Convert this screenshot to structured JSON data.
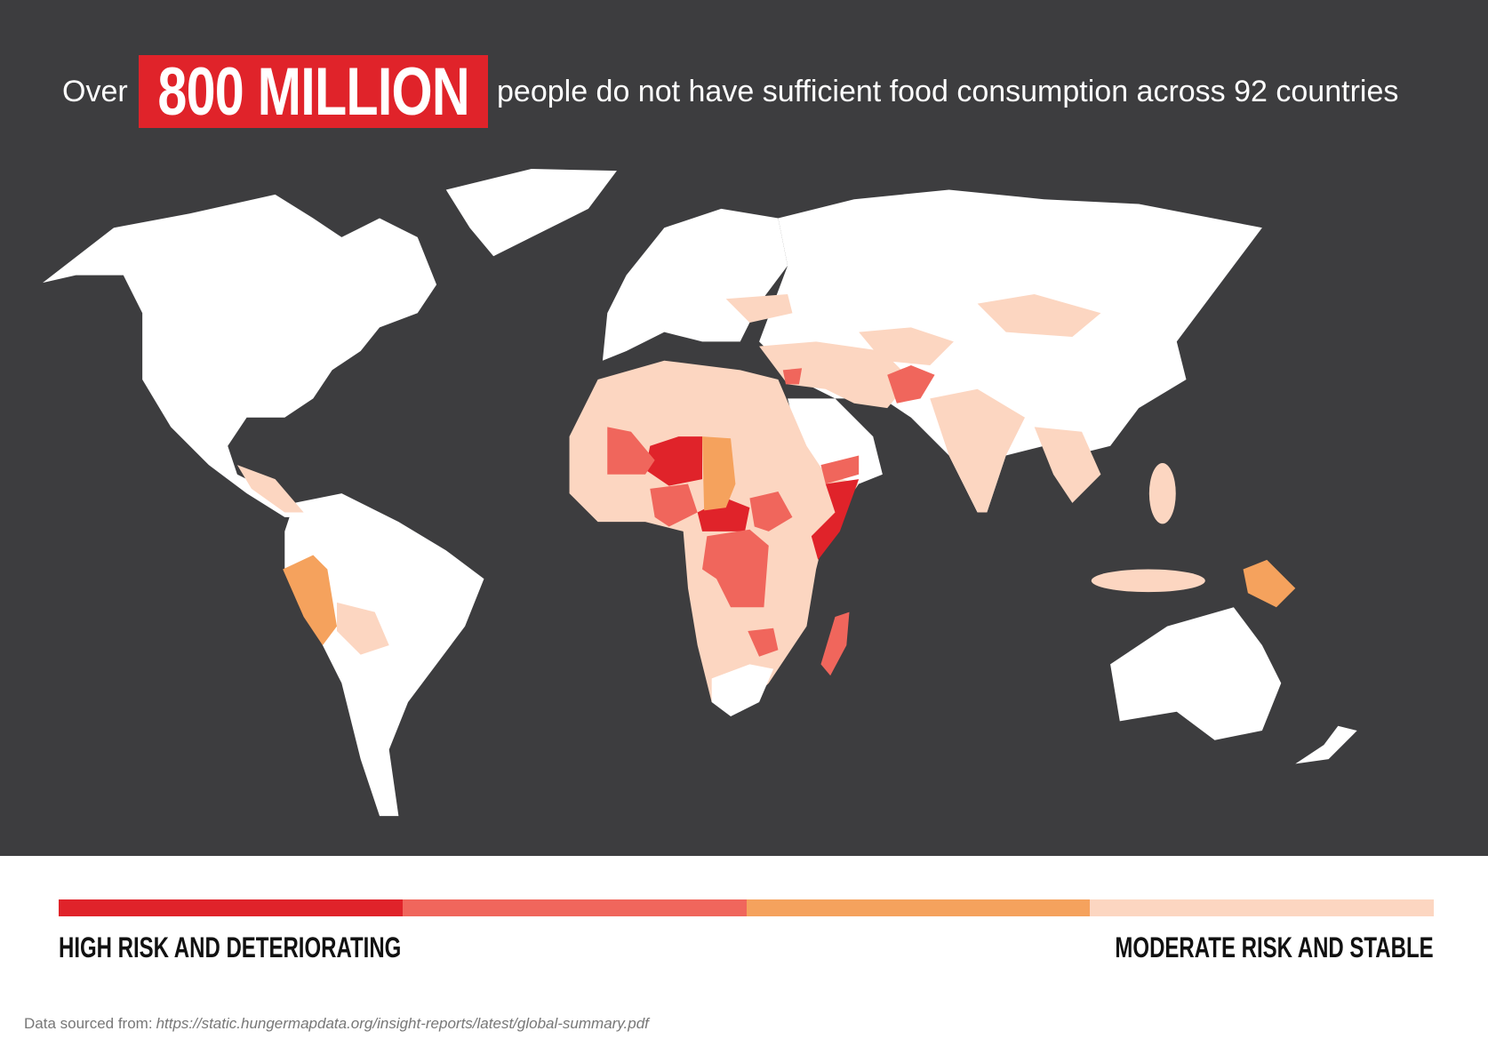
{
  "header": {
    "prefix": "Over",
    "highlight": "800 MILLION",
    "suffix": "people do not have sufficient food consumption across 92 countries"
  },
  "legend": {
    "colors": [
      "#e0232a",
      "#f0665c",
      "#f5a25d",
      "#fcd6c1"
    ],
    "low_label": "HIGH RISK AND DETERIORATING",
    "high_label": "MODERATE RISK AND STABLE"
  },
  "source": {
    "prefix": "Data sourced from:",
    "url": "https://static.hungermapdata.org/insight-reports/latest/global-summary.pdf"
  }
}
